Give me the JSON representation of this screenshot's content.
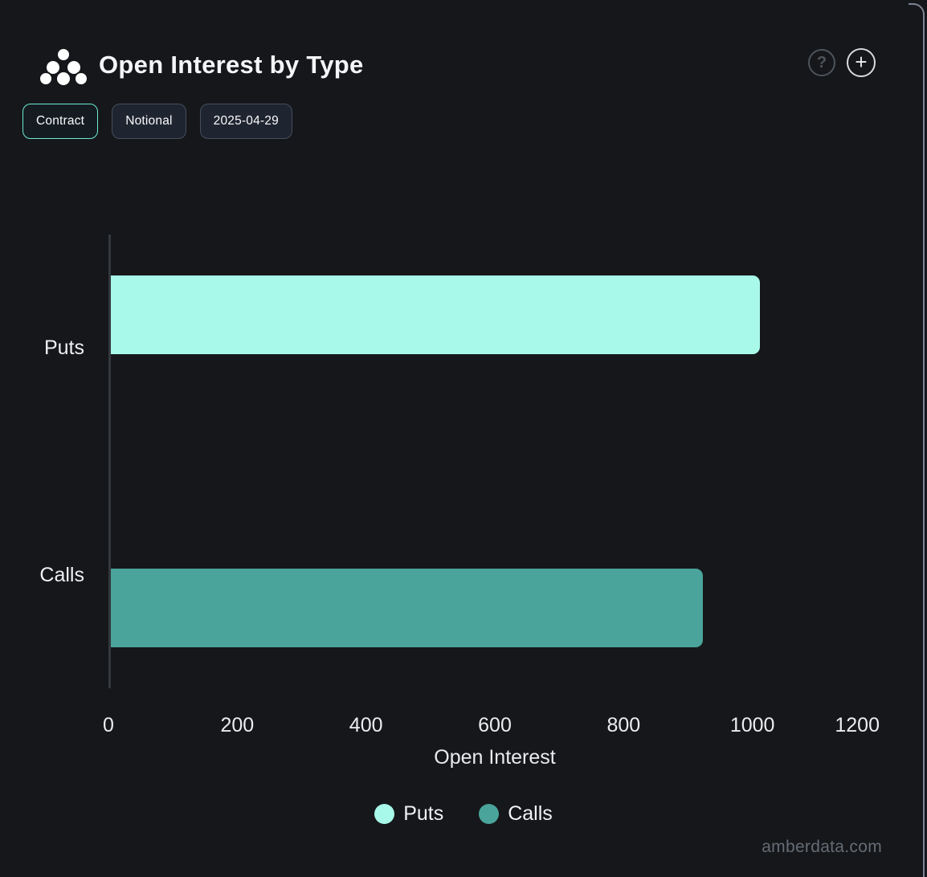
{
  "header": {
    "title": "Open Interest by Type",
    "help_label": "?",
    "add_label": "+"
  },
  "toolbar": {
    "buttons": [
      {
        "label": "Contract",
        "active": true
      },
      {
        "label": "Notional",
        "active": false
      },
      {
        "label": "2025-04-29",
        "active": false
      }
    ]
  },
  "chart_data": {
    "type": "bar",
    "orientation": "horizontal",
    "title": "Open Interest by Type",
    "categories": [
      "Puts",
      "Calls"
    ],
    "series": [
      {
        "name": "Puts",
        "color": "#A8F9E9",
        "values": [
          1008,
          null
        ]
      },
      {
        "name": "Calls",
        "color": "#4AA49B",
        "values": [
          null,
          920
        ]
      }
    ],
    "xlabel": "Open Interest",
    "xlim": [
      0,
      1200
    ],
    "xticks": [
      0,
      200,
      400,
      600,
      800,
      1000,
      1200
    ],
    "grid": false,
    "legend_position": "bottom",
    "legend": [
      {
        "label": "Puts",
        "color": "#A8F9E9"
      },
      {
        "label": "Calls",
        "color": "#4AA49B"
      }
    ]
  },
  "footer": {
    "watermark": "amberdata.com"
  },
  "colors": {
    "background": "#15171A",
    "accent_teal": "#6FE9D3",
    "bar_puts": "#A8F9E9",
    "bar_calls": "#4AA49B",
    "card_border": "#7C8595"
  }
}
